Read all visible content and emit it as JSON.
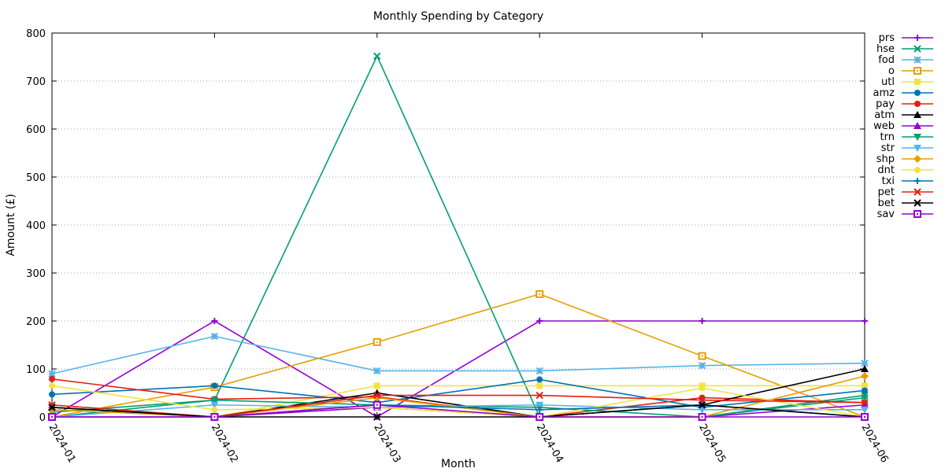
{
  "chart_data": {
    "type": "line",
    "title": "Monthly Spending by Category",
    "xlabel": "Month",
    "ylabel": "Amount (£)",
    "ylim": [
      0,
      800
    ],
    "yticks": [
      "0",
      "100",
      "200",
      "300",
      "400",
      "500",
      "600",
      "700",
      "800"
    ],
    "categories": [
      "2024-01",
      "2024-02",
      "2024-03",
      "2024-04",
      "2024-05",
      "2024-06"
    ],
    "grid": "horizontal dotted",
    "legend": "right",
    "series": [
      {
        "name": "prs",
        "color": "#9400d3",
        "marker": "plus",
        "values": [
          0,
          200,
          0,
          200,
          200,
          200
        ]
      },
      {
        "name": "hse",
        "color": "#009e73",
        "marker": "x",
        "values": [
          0,
          35,
          752,
          0,
          0,
          45
        ]
      },
      {
        "name": "fod",
        "color": "#56b4e9",
        "marker": "star",
        "values": [
          90,
          168,
          96,
          96,
          107,
          112
        ]
      },
      {
        "name": "o",
        "color": "#e69f00",
        "marker": "square-open",
        "values": [
          0,
          62,
          156,
          256,
          127,
          0
        ]
      },
      {
        "name": "utl",
        "color": "#f0e442",
        "marker": "square",
        "values": [
          0,
          0,
          65,
          65,
          65,
          65
        ]
      },
      {
        "name": "amz",
        "color": "#0072b2",
        "marker": "circle",
        "values": [
          47,
          65,
          30,
          78,
          20,
          55
        ]
      },
      {
        "name": "pay",
        "color": "#e51e10",
        "marker": "circle",
        "values": [
          79,
          37,
          42,
          0,
          40,
          30
        ]
      },
      {
        "name": "atm",
        "color": "#000000",
        "marker": "triangle",
        "values": [
          20,
          0,
          50,
          0,
          25,
          100
        ]
      },
      {
        "name": "web",
        "color": "#9400d3",
        "marker": "triangle",
        "values": [
          0,
          0,
          20,
          0,
          0,
          25
        ]
      },
      {
        "name": "trn",
        "color": "#009e73",
        "marker": "triangle-down",
        "values": [
          10,
          35,
          25,
          20,
          0,
          40
        ]
      },
      {
        "name": "str",
        "color": "#56b4e9",
        "marker": "triangle-down",
        "values": [
          0,
          25,
          20,
          25,
          15,
          15
        ]
      },
      {
        "name": "shp",
        "color": "#e69f00",
        "marker": "diamond",
        "values": [
          15,
          0,
          40,
          0,
          0,
          85
        ]
      },
      {
        "name": "dnt",
        "color": "#f0e442",
        "marker": "circle",
        "values": [
          65,
          15,
          20,
          0,
          60,
          0
        ]
      },
      {
        "name": "txi",
        "color": "#0072b2",
        "marker": "plus",
        "values": [
          20,
          0,
          25,
          15,
          25,
          0
        ]
      },
      {
        "name": "pet",
        "color": "#e51e10",
        "marker": "x",
        "values": [
          25,
          0,
          45,
          45,
          35,
          30
        ]
      },
      {
        "name": "bet",
        "color": "#000000",
        "marker": "x",
        "values": [
          20,
          0,
          0,
          0,
          25,
          0
        ]
      },
      {
        "name": "sav",
        "color": "#9400d3",
        "marker": "square-open",
        "values": [
          0,
          0,
          25,
          0,
          0,
          0
        ]
      }
    ]
  }
}
